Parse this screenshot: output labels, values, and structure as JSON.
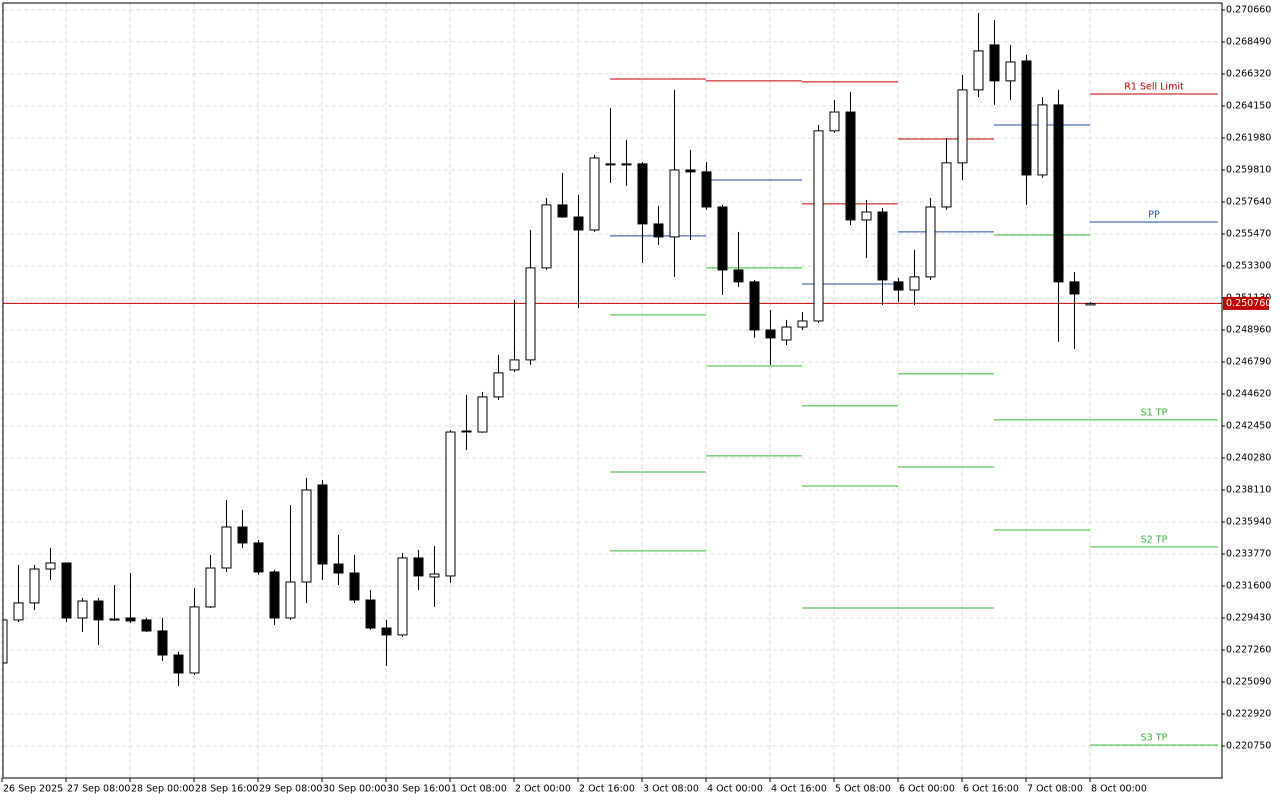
{
  "chart_data": {
    "type": "candlestick",
    "x": [
      "26 Sep 2025",
      null,
      null,
      null,
      "27 Sep 08:00",
      null,
      null,
      null,
      "28 Sep 00:00",
      null,
      null,
      null,
      "28 Sep 16:00",
      null,
      null,
      null,
      "29 Sep 08:00",
      null,
      null,
      null,
      "30 Sep 00:00",
      null,
      null,
      null,
      "30 Sep 16:00",
      null,
      null,
      null,
      "1 Oct 08:00",
      null,
      null,
      null,
      "2 Oct 00:00",
      null,
      null,
      null,
      "2 Oct 16:00",
      null,
      null,
      null,
      "3 Oct 08:00",
      null,
      null,
      null,
      "4 Oct 00:00",
      null,
      null,
      null,
      "4 Oct 16:00",
      null,
      null,
      null,
      "5 Oct 08:00",
      null,
      null,
      null,
      "6 Oct 00:00",
      null,
      null,
      null,
      "6 Oct 16:00",
      null,
      null,
      null,
      "7 Oct 08:00",
      null,
      null,
      null,
      "8 Oct 00:00"
    ],
    "open": [
      0.22638,
      0.2293,
      0.23045,
      0.23275,
      0.23316,
      0.22943,
      0.23058,
      0.22936,
      0.22943,
      0.2293,
      0.22855,
      0.22692,
      0.2257,
      0.23018,
      0.23282,
      0.2356,
      0.23452,
      0.23255,
      0.22943,
      0.23187,
      0.23845,
      0.23309,
      0.23248,
      0.23065,
      0.22875,
      0.22828,
      0.2335,
      0.23221,
      0.23228,
      0.24211,
      0.24204,
      0.24442,
      0.24625,
      0.24693,
      0.25317,
      0.25744,
      0.25662,
      0.25574,
      0.26022,
      0.26022,
      0.26022,
      0.25615,
      0.25527,
      0.25981,
      0.25968,
      0.2573,
      0.25303,
      0.25222,
      0.24896,
      0.24828,
      0.24916,
      0.24957,
      0.26246,
      0.26374,
      0.25642,
      0.25696,
      0.25222,
      0.25167,
      0.25256,
      0.2573,
      0.26029,
      0.26524,
      0.26829,
      0.26585,
      0.2672,
      0.25947,
      0.26422,
      0.25222,
      0.25066
    ],
    "high": [
      0.22943,
      0.23303,
      0.23303,
      0.23418,
      0.23316,
      0.23079,
      0.23079,
      0.23167,
      0.23248,
      0.22943,
      0.22943,
      0.22713,
      0.23147,
      0.2337,
      0.23743,
      0.23676,
      0.23472,
      0.23269,
      0.23709,
      0.23893,
      0.23879,
      0.23506,
      0.2337,
      0.23133,
      0.2293,
      0.23384,
      0.23404,
      0.23431,
      0.24218,
      0.24455,
      0.24476,
      0.24727,
      0.251,
      0.25574,
      0.25791,
      0.25961,
      0.25812,
      0.26083,
      0.26402,
      0.26185,
      0.26035,
      0.25737,
      0.26524,
      0.26117,
      0.26035,
      0.25744,
      0.25561,
      0.25235,
      0.25032,
      0.24964,
      0.25018,
      0.26286,
      0.26456,
      0.2651,
      0.25778,
      0.25723,
      0.25249,
      0.25439,
      0.25791,
      0.26198,
      0.26625,
      0.27046,
      0.26998,
      0.26829,
      0.26761,
      0.26476,
      0.26524,
      0.25289,
      0.25086
    ],
    "low": [
      0.22638,
      0.22916,
      0.22997,
      0.23201,
      0.22916,
      0.22848,
      0.2276,
      0.22923,
      0.22909,
      0.22848,
      0.22652,
      0.22482,
      0.22557,
      0.23011,
      0.23255,
      0.23418,
      0.23235,
      0.22896,
      0.2293,
      0.23045,
      0.23201,
      0.23167,
      0.23045,
      0.22862,
      0.22618,
      0.22814,
      0.23133,
      0.23018,
      0.23181,
      0.24082,
      0.24198,
      0.24421,
      0.24611,
      0.24659,
      0.25303,
      0.25656,
      0.25045,
      0.25561,
      0.25893,
      0.25873,
      0.2535,
      0.25473,
      0.25256,
      0.25506,
      0.2571,
      0.25133,
      0.25188,
      0.24842,
      0.24659,
      0.24794,
      0.24896,
      0.24944,
      0.26232,
      0.25608,
      0.25384,
      0.25066,
      0.25086,
      0.25066,
      0.25235,
      0.2571,
      0.25913,
      0.26476,
      0.26422,
      0.26456,
      0.25744,
      0.25927,
      0.24815,
      0.24767,
      0.25066
    ],
    "close": [
      0.2293,
      0.23045,
      0.23275,
      0.23316,
      0.22943,
      0.23058,
      0.2293,
      0.2293,
      0.22923,
      0.22855,
      0.22692,
      0.2257,
      0.23018,
      0.23282,
      0.2356,
      0.23452,
      0.23255,
      0.22943,
      0.23187,
      0.23811,
      0.23309,
      0.23248,
      0.23065,
      0.22875,
      0.22828,
      0.2335,
      0.23228,
      0.23241,
      0.24204,
      0.24204,
      0.24442,
      0.24605,
      0.24693,
      0.25317,
      0.25744,
      0.25662,
      0.25574,
      0.26062,
      0.26015,
      0.26018,
      0.25615,
      0.25527,
      0.25981,
      0.25968,
      0.2573,
      0.25303,
      0.25222,
      0.24896,
      0.24842,
      0.24916,
      0.24957,
      0.26246,
      0.26374,
      0.25642,
      0.25696,
      0.25235,
      0.25167,
      0.25256,
      0.2573,
      0.26029,
      0.26524,
      0.26788,
      0.26585,
      0.26713,
      0.25947,
      0.26422,
      0.25222,
      0.2514,
      0.25076
    ],
    "bull_color": "#ffffff",
    "bear_color": "#000000",
    "levels": [
      {
        "name": "R1 Sell Limit",
        "color": "#c00000",
        "values": [
          0.26598,
          0.26585,
          0.26578,
          0.26191,
          null,
          0.26496
        ]
      },
      {
        "color": "#c00000",
        "values": [
          null,
          null,
          0.25751,
          null,
          null,
          null
        ]
      },
      {
        "name": "PP",
        "color": "#1f4e9c",
        "values": [
          0.25534,
          0.25913,
          0.25208,
          0.25561,
          0.26286,
          0.25628
        ]
      },
      {
        "name": "S1 TP",
        "color": "#33bb33",
        "values": [
          0.24998,
          0.25317,
          0.24381,
          0.24598,
          0.2554,
          0.24286
        ]
      },
      {
        "name": "S2 TP",
        "color": "#33bb33",
        "values": [
          0.23933,
          0.24652,
          0.23838,
          0.23967,
          0.24286,
          0.23425
        ]
      },
      {
        "name": "S3 TP",
        "color": "#33bb33",
        "values": [
          0.23398,
          0.24042,
          0.23011,
          0.23011,
          0.2354,
          0.22082
        ]
      }
    ],
    "current_price": {
      "value": 0.25076,
      "label": "0.250760"
    },
    "current_price_color": "#c00000",
    "ylim": [
      0.21858,
      0.27113
    ],
    "yticks": [
      {
        "value": 0.27066,
        "label": "0.270660"
      },
      {
        "value": 0.26849,
        "label": "0.268490"
      },
      {
        "value": 0.26632,
        "label": "0.266320"
      },
      {
        "value": 0.26415,
        "label": "0.264150"
      },
      {
        "value": 0.26198,
        "label": "0.261980"
      },
      {
        "value": 0.25981,
        "label": "0.259810"
      },
      {
        "value": 0.25764,
        "label": "0.257640"
      },
      {
        "value": 0.25547,
        "label": "0.255470"
      },
      {
        "value": 0.2533,
        "label": "0.253300"
      },
      {
        "value": 0.25113,
        "label": "0.251130"
      },
      {
        "value": 0.24896,
        "label": "0.248960"
      },
      {
        "value": 0.24679,
        "label": "0.246790"
      },
      {
        "value": 0.24462,
        "label": "0.244620"
      },
      {
        "value": 0.24245,
        "label": "0.242450"
      },
      {
        "value": 0.24028,
        "label": "0.240280"
      },
      {
        "value": 0.23811,
        "label": "0.238110"
      },
      {
        "value": 0.23594,
        "label": "0.235940"
      },
      {
        "value": 0.23377,
        "label": "0.233770"
      },
      {
        "value": 0.2316,
        "label": "0.231600"
      },
      {
        "value": 0.22943,
        "label": "0.229430"
      },
      {
        "value": 0.22726,
        "label": "0.227260"
      },
      {
        "value": 0.22509,
        "label": "0.225090"
      },
      {
        "value": 0.22292,
        "label": "0.222920"
      },
      {
        "value": 0.22075,
        "label": "0.220750"
      }
    ],
    "grid": true
  }
}
